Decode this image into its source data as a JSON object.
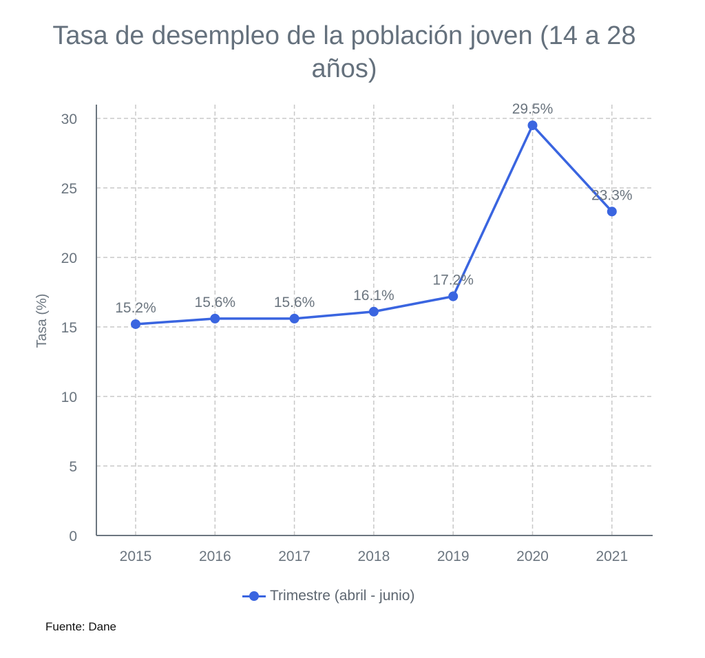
{
  "chart_data": {
    "type": "line",
    "title": "Tasa de desempleo de la población joven (14 a 28 años)",
    "xlabel": "",
    "ylabel": "Tasa (%)",
    "categories": [
      "2015",
      "2016",
      "2017",
      "2018",
      "2019",
      "2020",
      "2021"
    ],
    "series": [
      {
        "name": "Trimestre (abril - junio)",
        "values": [
          15.2,
          15.6,
          15.6,
          16.1,
          17.2,
          29.5,
          23.3
        ],
        "labels": [
          "15.2%",
          "15.6%",
          "15.6%",
          "16.1%",
          "17.2%",
          "29.5%",
          "23.3%"
        ],
        "color": "#3a65e0"
      }
    ],
    "ylim": [
      0,
      30
    ],
    "yticks": [
      "0",
      "5",
      "10",
      "15",
      "20",
      "25",
      "30"
    ],
    "grid": true,
    "grid_style": "dashed",
    "legend_position": "bottom-center"
  },
  "source": "Fuente: Dane",
  "colors": {
    "series": "#3a65e0",
    "text": "#6b757f",
    "grid": "#c8c8c8",
    "axis": "#6b757f"
  }
}
